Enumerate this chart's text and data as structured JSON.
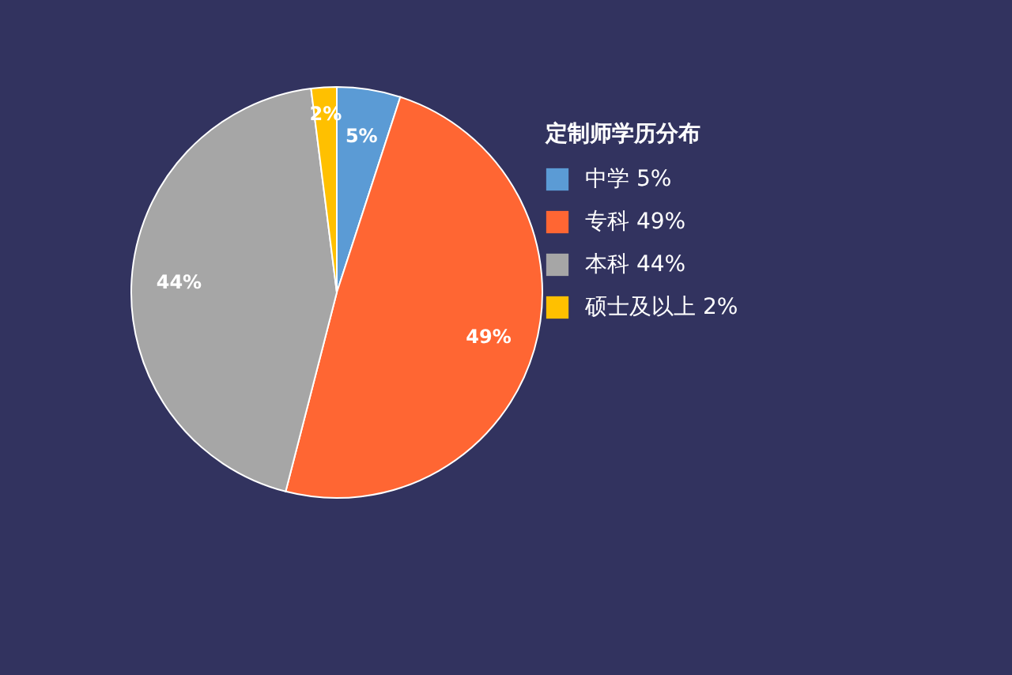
{
  "chart_data": {
    "type": "pie",
    "legend_title": "定制师学历分布",
    "legend": "right",
    "categories": [
      "中学",
      "专科",
      "本科",
      "硕士及以上"
    ],
    "values": [
      5,
      49,
      44,
      2
    ],
    "value_labels": [
      "5%",
      "49%",
      "44%",
      "2%"
    ],
    "colors": [
      "#5b9bd5",
      "#ff6633",
      "#a6a6a6",
      "#ffc000"
    ]
  }
}
